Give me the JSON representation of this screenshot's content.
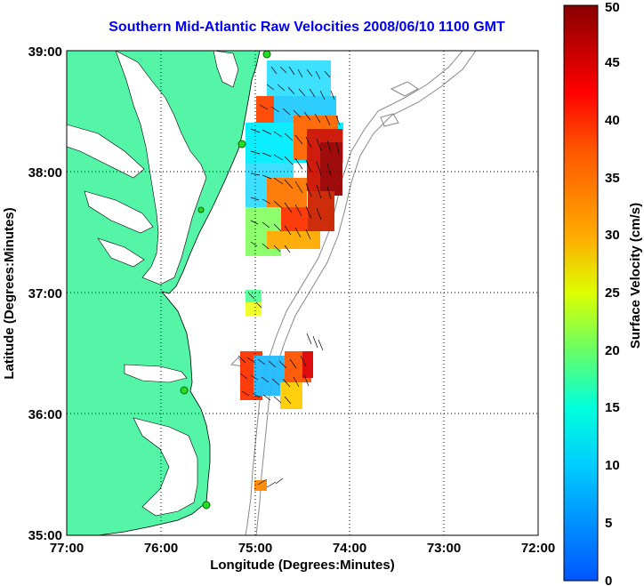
{
  "title": "Southern Mid-Atlantic Raw Velocities 2008/06/10 1100 GMT",
  "x_axis": {
    "label": "Longitude (Degrees:Minutes)",
    "ticks": [
      "77:00",
      "76:00",
      "75:00",
      "74:00",
      "73:00",
      "72:00"
    ]
  },
  "y_axis": {
    "label": "Latitude (Degrees:Minutes)",
    "ticks": [
      "39:00",
      "38:00",
      "37:00",
      "36:00",
      "35:00"
    ]
  },
  "colorbar": {
    "label": "Surface Velocity (cm/s)",
    "ticks": [
      "0",
      "5",
      "10",
      "15",
      "20",
      "25",
      "30",
      "35",
      "40",
      "45",
      "50"
    ],
    "range": [
      0,
      50
    ]
  },
  "colors": {
    "land": "#55f5a8",
    "title": "#0000ee"
  },
  "grid": "dotted"
}
